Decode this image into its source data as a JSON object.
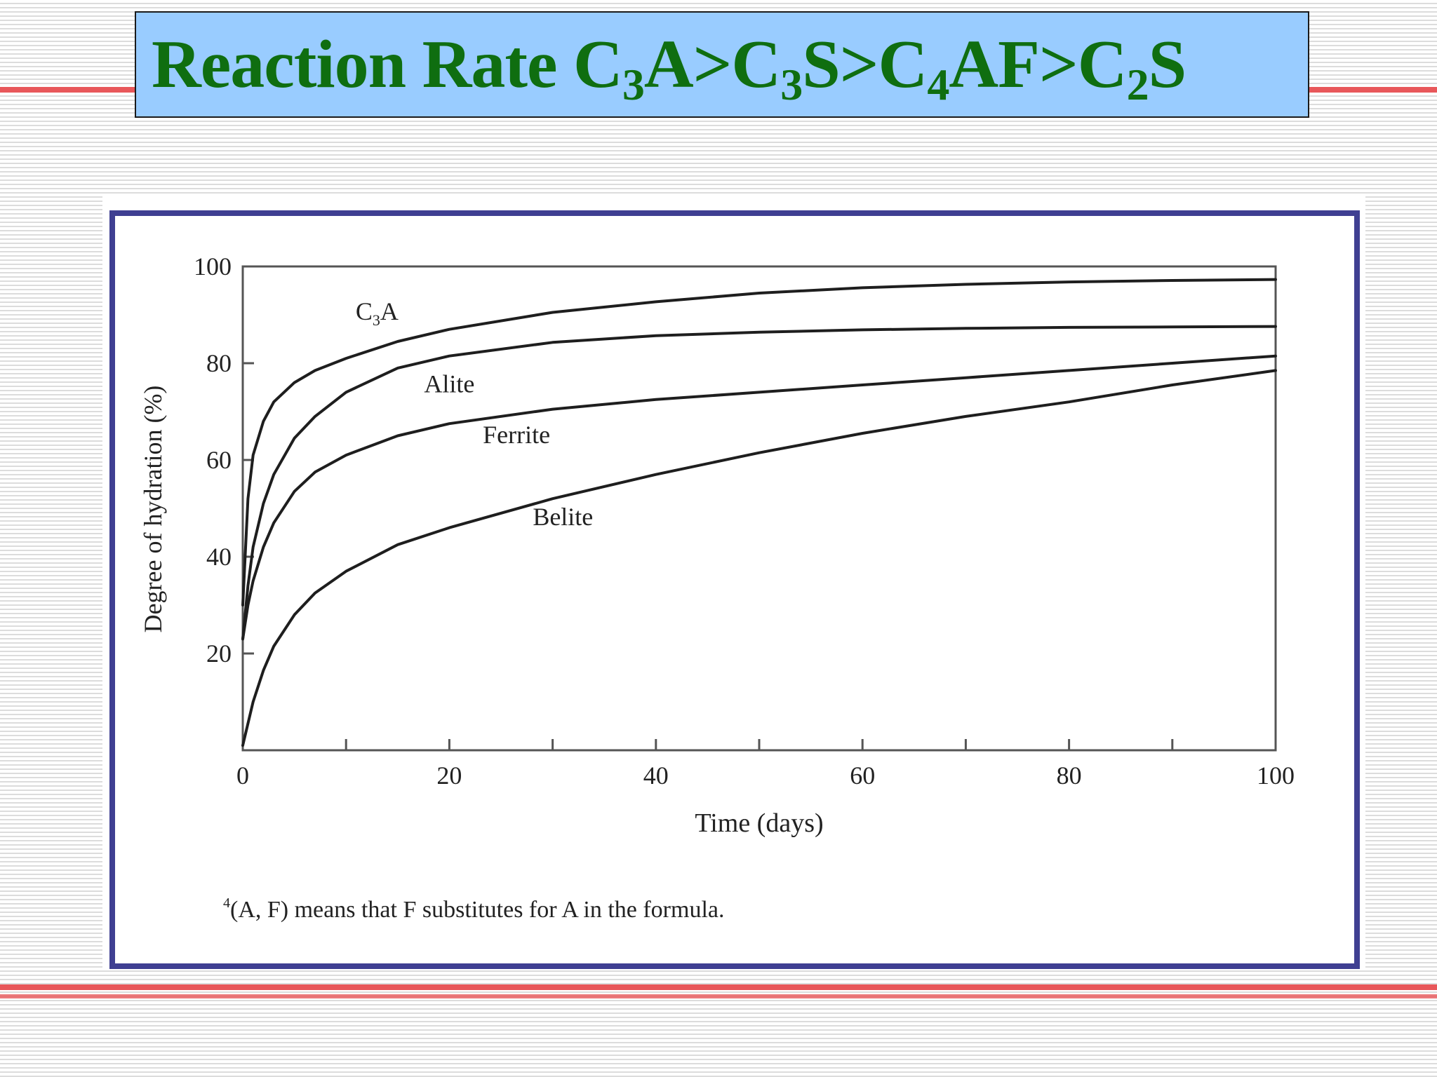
{
  "title": {
    "parts": [
      {
        "text": "Reaction Rate C"
      },
      {
        "sub": "3"
      },
      {
        "text": "A>C"
      },
      {
        "sub": "3"
      },
      {
        "text": "S>C"
      },
      {
        "sub": "4"
      },
      {
        "text": "AF>C"
      },
      {
        "sub": "2"
      },
      {
        "text": "S"
      }
    ]
  },
  "colors": {
    "title_text": "#0f6e10",
    "title_background": "#99ccff",
    "frame": "#3f3f92",
    "accent_line": "#e8575a",
    "curve": "#1e1e1e"
  },
  "chart_data": {
    "type": "line",
    "title": "",
    "xlabel": "Time (days)",
    "ylabel": "Degree of hydration (%)",
    "xlim": [
      0,
      100
    ],
    "ylim": [
      0,
      100
    ],
    "x_ticks": [
      0,
      20,
      40,
      60,
      80,
      100
    ],
    "y_ticks": [
      20,
      40,
      60,
      80,
      100
    ],
    "x_minor_ticks": [
      10,
      30,
      50,
      70,
      90
    ],
    "grid": false,
    "series": [
      {
        "name": "C3A",
        "label_parts": [
          {
            "text": "C"
          },
          {
            "sub": "3"
          },
          {
            "text": "A"
          }
        ],
        "label_at": [
          13,
          89
        ],
        "x": [
          0,
          0.5,
          1,
          2,
          3,
          5,
          7,
          10,
          15,
          20,
          30,
          40,
          50,
          60,
          70,
          80,
          90,
          100
        ],
        "y": [
          30,
          52,
          61,
          68,
          72,
          76,
          78.5,
          81,
          84.5,
          87,
          90.5,
          92.7,
          94.5,
          95.6,
          96.3,
          96.8,
          97.1,
          97.3
        ]
      },
      {
        "name": "Alite",
        "label_parts": [
          {
            "text": "Alite"
          }
        ],
        "label_at": [
          20,
          74
        ],
        "x": [
          0,
          0.5,
          1,
          2,
          3,
          5,
          7,
          10,
          15,
          20,
          30,
          40,
          50,
          60,
          70,
          80,
          90,
          100
        ],
        "y": [
          23,
          34,
          42,
          51,
          57,
          64.5,
          69,
          74,
          79,
          81.5,
          84.3,
          85.7,
          86.4,
          86.9,
          87.2,
          87.4,
          87.5,
          87.6
        ]
      },
      {
        "name": "Ferrite",
        "label_parts": [
          {
            "text": "Ferrite"
          }
        ],
        "label_at": [
          26.5,
          63.5
        ],
        "x": [
          0,
          0.5,
          1,
          2,
          3,
          5,
          7,
          10,
          15,
          20,
          30,
          40,
          50,
          60,
          70,
          80,
          90,
          100
        ],
        "y": [
          23,
          30,
          35,
          42,
          47,
          53.5,
          57.5,
          61,
          65,
          67.5,
          70.5,
          72.5,
          74,
          75.5,
          77,
          78.5,
          80,
          81.5
        ]
      },
      {
        "name": "Belite",
        "label_parts": [
          {
            "text": "Belite"
          }
        ],
        "label_at": [
          31,
          46.5
        ],
        "x": [
          0,
          1,
          2,
          3,
          5,
          7,
          10,
          15,
          20,
          30,
          40,
          50,
          60,
          70,
          80,
          90,
          100
        ],
        "y": [
          1,
          10,
          16.5,
          21.5,
          28,
          32.5,
          37,
          42.5,
          46,
          52,
          57,
          61.5,
          65.5,
          69,
          72,
          75.5,
          78.5
        ]
      }
    ],
    "footnote": {
      "marker": "4",
      "text": "(A, F) means that F substitutes for A in the formula."
    }
  }
}
